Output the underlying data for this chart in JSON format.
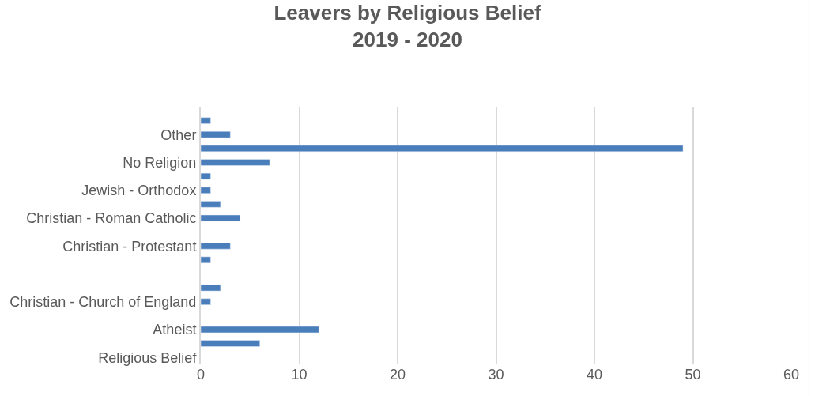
{
  "chart_data": {
    "type": "bar",
    "orientation": "horizontal",
    "title": "Leavers by Religious Belief\n2019 - 2020",
    "categories": [
      null,
      "Other",
      null,
      "No Religion",
      null,
      "Jewish - Orthodox",
      null,
      "Christian - Roman Catholic",
      null,
      "Christian - Protestant",
      null,
      null,
      null,
      "Christian - Church of England",
      null,
      "Atheist",
      null,
      "Religious Belief"
    ],
    "values": [
      1,
      3,
      49,
      7,
      1,
      1,
      2,
      4,
      null,
      3,
      1,
      null,
      2,
      1,
      null,
      12,
      6,
      null
    ],
    "color": "#4a7ebb",
    "xlim": [
      0,
      60
    ],
    "xticks": [
      0,
      10,
      20,
      30,
      40,
      50,
      60
    ],
    "grid": "x",
    "legend": false
  }
}
